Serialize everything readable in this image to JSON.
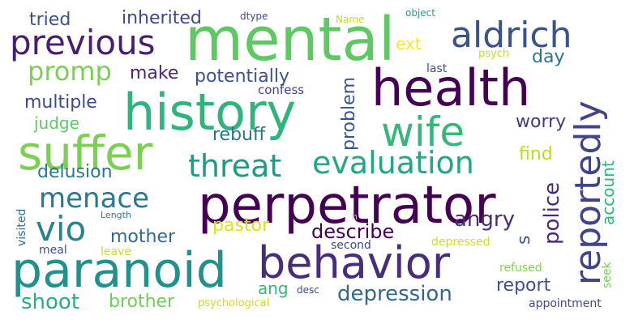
{
  "words": [
    {
      "text": "mental",
      "color": "#5ec962"
    },
    {
      "text": "health",
      "color": "#440154"
    },
    {
      "text": "history",
      "color": "#2fb47c"
    },
    {
      "text": "perpetrator",
      "color": "#440154"
    },
    {
      "text": "behavior",
      "color": "#472d7b"
    },
    {
      "text": "paranoid",
      "color": "#21918c"
    },
    {
      "text": "suffer",
      "color": "#7ad151"
    },
    {
      "text": "wife",
      "color": "#35b779"
    },
    {
      "text": "previous",
      "color": "#481f70"
    },
    {
      "text": "aldrich",
      "color": "#3b528b"
    },
    {
      "text": "reportedly",
      "color": "#414487"
    },
    {
      "text": "threat",
      "color": "#1f9a8a"
    },
    {
      "text": "evaluation",
      "color": "#22a884"
    },
    {
      "text": "menace",
      "color": "#2a788e"
    },
    {
      "text": "vio",
      "color": "#25838e"
    },
    {
      "text": "promp",
      "color": "#7ad151"
    },
    {
      "text": "inherited",
      "color": "#3e4989"
    },
    {
      "text": "tried",
      "color": "#3b528b"
    },
    {
      "text": "ext",
      "color": "#fde725"
    },
    {
      "text": "make",
      "color": "#482878"
    },
    {
      "text": "potentially",
      "color": "#3b528b"
    },
    {
      "text": "day",
      "color": "#2c728e"
    },
    {
      "text": "multiple",
      "color": "#3e4989"
    },
    {
      "text": "judge",
      "color": "#5ec962"
    },
    {
      "text": "rebuff",
      "color": "#2c728e"
    },
    {
      "text": "problem",
      "color": "#3b528b"
    },
    {
      "text": "worry",
      "color": "#443983"
    },
    {
      "text": "find",
      "color": "#b5de2b"
    },
    {
      "text": "delusion",
      "color": "#2a788e"
    },
    {
      "text": "police",
      "color": "#482878"
    },
    {
      "text": "account",
      "color": "#2fb47c"
    },
    {
      "text": "angry",
      "color": "#472c7a"
    },
    {
      "text": "mother",
      "color": "#31688e"
    },
    {
      "text": "pastor",
      "color": "#dde318"
    },
    {
      "text": "describe",
      "color": "#440154"
    },
    {
      "text": "s",
      "color": "#38598c"
    },
    {
      "text": "ang",
      "color": "#35b779"
    },
    {
      "text": "report",
      "color": "#3b528b"
    },
    {
      "text": "depression",
      "color": "#31688e"
    },
    {
      "text": "shoot",
      "color": "#29af7f"
    },
    {
      "text": "brother",
      "color": "#6ece58"
    },
    {
      "text": "confess",
      "color": "#414487"
    },
    {
      "text": "last",
      "color": "#3e4989"
    },
    {
      "text": "psych",
      "color": "#c2df23"
    },
    {
      "text": "dtype",
      "color": "#3e4989"
    },
    {
      "text": "Name",
      "color": "#c2df23"
    },
    {
      "text": "object",
      "color": "#1f9e89"
    },
    {
      "text": "visited",
      "color": "#2c728e"
    },
    {
      "text": "Length",
      "color": "#26828e"
    },
    {
      "text": "meal",
      "color": "#3b528b"
    },
    {
      "text": "leave",
      "color": "#c8e020"
    },
    {
      "text": "second",
      "color": "#3e4989"
    },
    {
      "text": "depressed",
      "color": "#d0e11c"
    },
    {
      "text": "h",
      "color": "#b5de2b"
    },
    {
      "text": "refused",
      "color": "#84d44b"
    },
    {
      "text": "seek",
      "color": "#73d056"
    },
    {
      "text": "desc",
      "color": "#3e4989"
    },
    {
      "text": "psychological",
      "color": "#c8e020"
    },
    {
      "text": "appointment",
      "color": "#3e4989"
    }
  ]
}
